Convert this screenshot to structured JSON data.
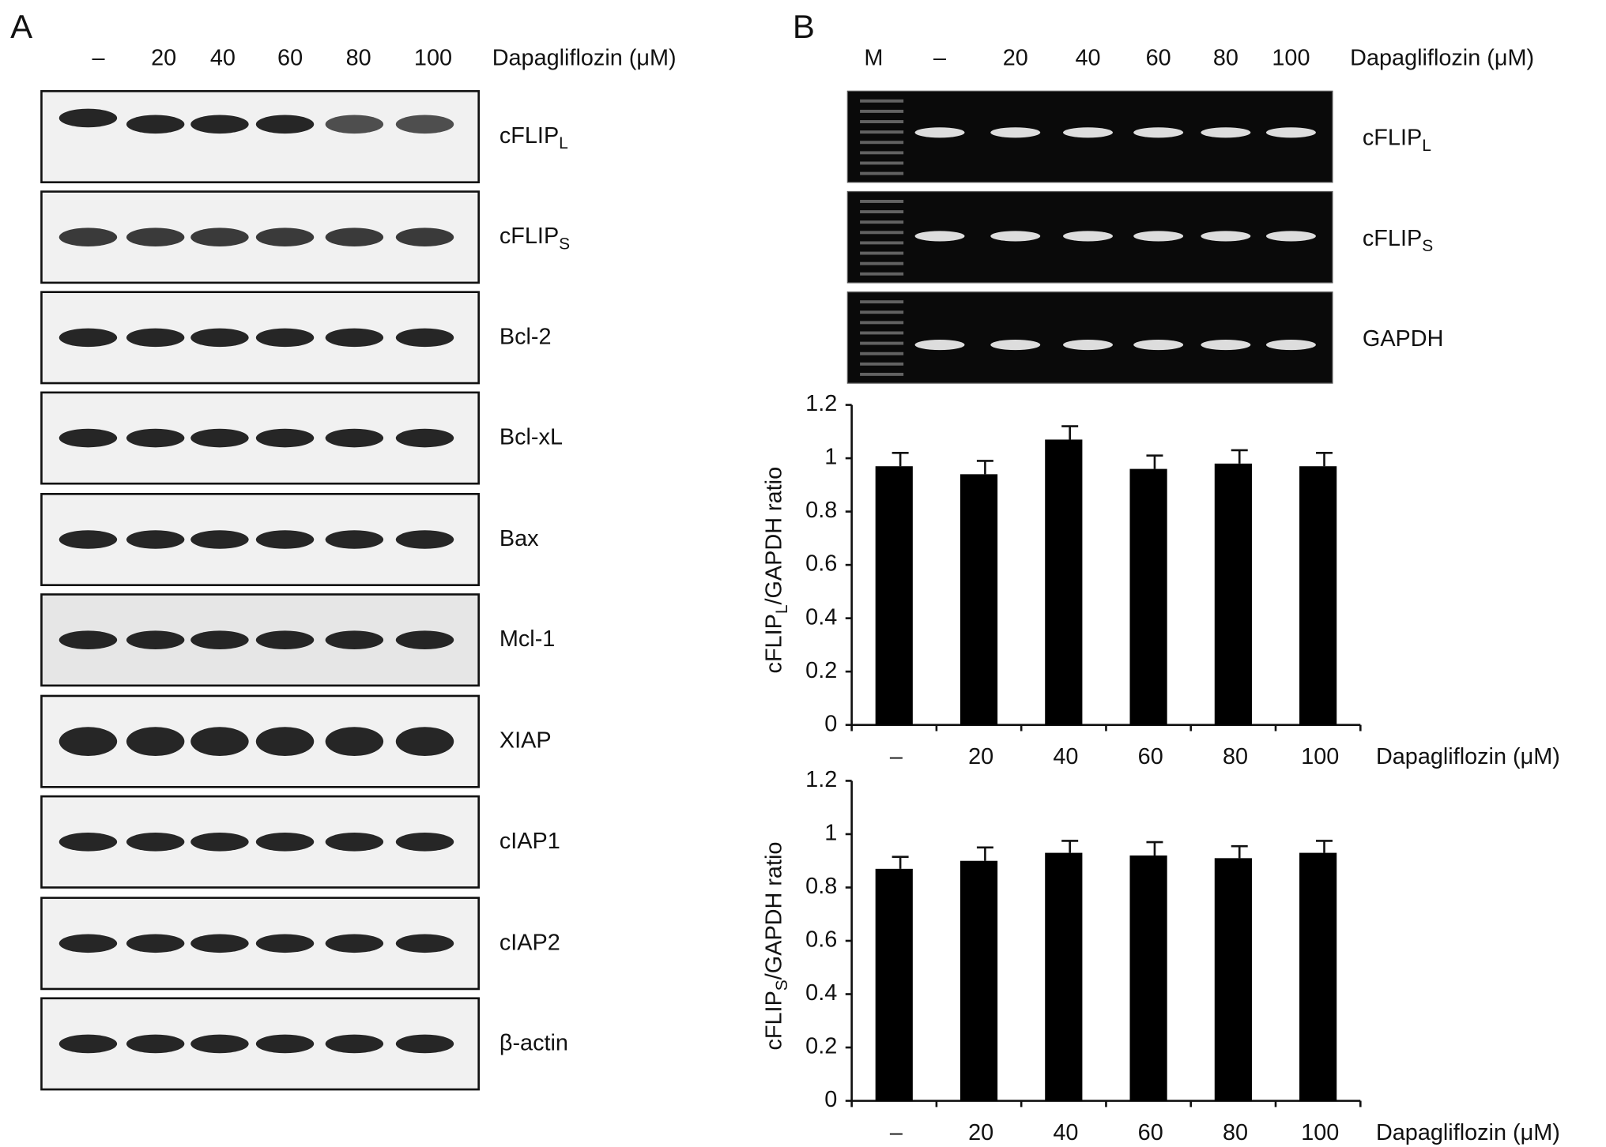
{
  "panel_a": {
    "label": "A",
    "lanes": [
      "–",
      "20",
      "40",
      "60",
      "80",
      "100"
    ],
    "treatment_label": "Dapagliflozin (μM)",
    "blots": [
      {
        "text": "cFLIP",
        "sub": "L"
      },
      {
        "text": "cFLIP",
        "sub": "S"
      },
      {
        "text": "Bcl-2"
      },
      {
        "text": "Bcl-xL"
      },
      {
        "text": "Bax"
      },
      {
        "text": "Mcl-1"
      },
      {
        "text": "XIAP"
      },
      {
        "text": "cIAP1"
      },
      {
        "text": "cIAP2"
      },
      {
        "text": "β-actin"
      }
    ]
  },
  "panel_b": {
    "label": "B",
    "marker": "M",
    "lanes": [
      "–",
      "20",
      "40",
      "60",
      "80",
      "100"
    ],
    "treatment_label": "Dapagliflozin (μM)",
    "gels": [
      {
        "text": "cFLIP",
        "sub": "L"
      },
      {
        "text": "cFLIP",
        "sub": "S"
      },
      {
        "text": "GAPDH"
      }
    ]
  },
  "chart_data": [
    {
      "type": "bar",
      "ylabel": {
        "pre": "cFLIP",
        "sub": "L",
        "post": "/GAPDH ratio"
      },
      "xlabel": "Dapagliflozin (μM)",
      "categories": [
        "–",
        "20",
        "40",
        "60",
        "80",
        "100"
      ],
      "values": [
        0.97,
        0.94,
        1.07,
        0.96,
        0.98,
        0.97
      ],
      "errors": [
        0.05,
        0.05,
        0.05,
        0.05,
        0.05,
        0.05
      ],
      "color": "#000000",
      "ylim": [
        0,
        1.2
      ],
      "yticks": [
        0,
        0.2,
        0.4,
        0.6,
        0.8,
        1,
        1.2
      ]
    },
    {
      "type": "bar",
      "ylabel": {
        "pre": "cFLIP",
        "sub": "S",
        "post": "/GAPDH ratio"
      },
      "xlabel": "Dapagliflozin (μM)",
      "categories": [
        "–",
        "20",
        "40",
        "60",
        "80",
        "100"
      ],
      "values": [
        0.87,
        0.9,
        0.93,
        0.92,
        0.91,
        0.93
      ],
      "errors": [
        0.045,
        0.05,
        0.045,
        0.05,
        0.045,
        0.045
      ],
      "color": "#000000",
      "ylim": [
        0,
        1.2
      ],
      "yticks": [
        0,
        0.2,
        0.4,
        0.6,
        0.8,
        1,
        1.2
      ]
    }
  ]
}
